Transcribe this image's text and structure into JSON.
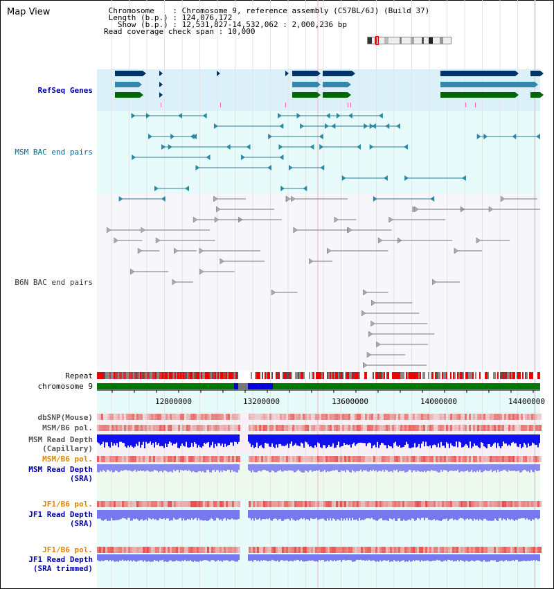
{
  "header": {
    "title": "Map View",
    "info_lines": [
      " Chromosome    : Chromosome 9, reference assembly (C57BL/6J) (Build 37)",
      " Length (b.p.) : 124,076,172",
      "   Show (b.p.) : 12,531,827-14,532,062 : 2,000,236 bp",
      "Read coverage check span : 10,000"
    ]
  },
  "tracks": {
    "refseq": "RefSeq Genes",
    "msm_bac": "MSM BAC end pairs",
    "b6n_bac": "B6N BAC end pairs",
    "repeat": "Repeat",
    "chromosome": "chromosome 9",
    "dbsnp": "dbSNP(Mouse)",
    "msm_b6_pol_1": "MSM/B6 pol.",
    "msm_read_depth_cap_1": "MSM Read Depth",
    "msm_read_depth_cap_2": "(Capillary)",
    "msm_b6_pol_2": "MSM/B6 pol.",
    "msm_read_depth_sra_1": "MSM Read Depth",
    "msm_read_depth_sra_2": "(SRA)",
    "jf1_b6_pol_1": "JF1/B6 pol.",
    "jf1_read_depth_sra_1": "JF1 Read Depth",
    "jf1_read_depth_sra_2": "(SRA)",
    "jf1_b6_pol_2": "JF1/B6 pol.",
    "jf1_read_depth_trim_1": "JF1 Read Depth",
    "jf1_read_depth_trim_2": "(SRA trimmed)"
  },
  "axis": {
    "ticks": [
      "12800000",
      "13200000",
      "13600000",
      "14000000",
      "14400000"
    ]
  },
  "colors": {
    "refseq_bg": "#dcf0fa",
    "msm_bg": "#e8fbfb",
    "b6n_bg": "#f6f6fb",
    "gene_navy": "#003366",
    "gene_teal": "#3388aa",
    "gene_green": "#006600",
    "label_blue": "#0000aa",
    "label_teal": "#006688",
    "label_orange": "#dd8800"
  }
}
